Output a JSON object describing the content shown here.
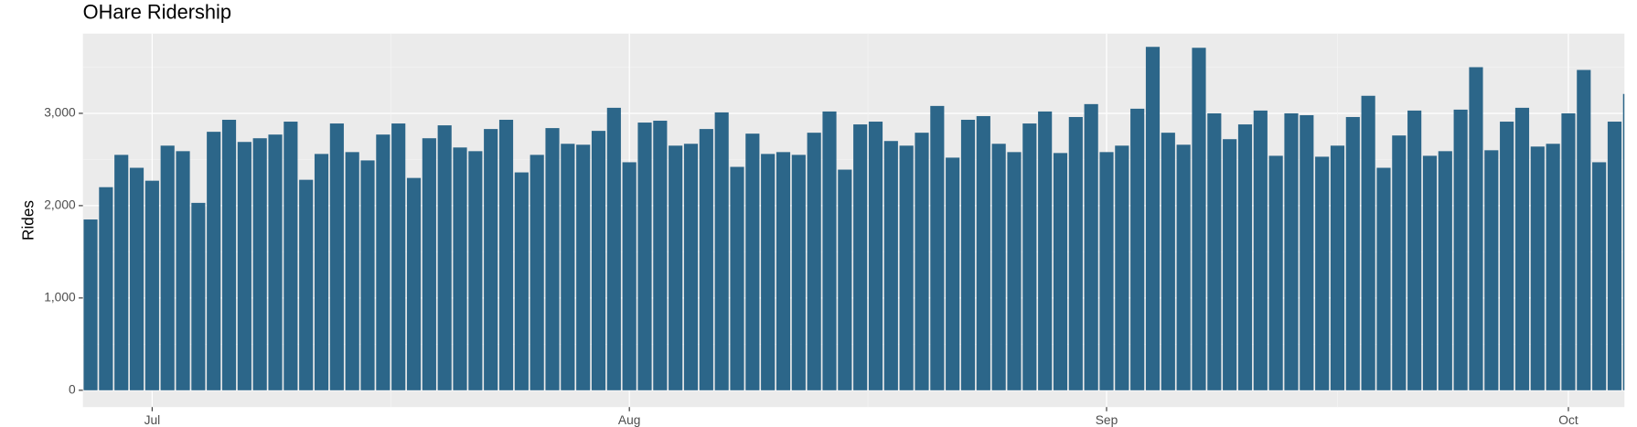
{
  "chart_data": {
    "type": "bar",
    "title": "OHare Ridership",
    "y_label": "Rides",
    "categories": [
      null,
      null,
      null,
      null,
      "Jul",
      null,
      null,
      null,
      null,
      null,
      null,
      null,
      null,
      null,
      null,
      null,
      null,
      null,
      null,
      null,
      null,
      null,
      null,
      null,
      null,
      null,
      null,
      null,
      null,
      null,
      null,
      null,
      null,
      null,
      null,
      "Aug",
      null,
      null,
      null,
      null,
      null,
      null,
      null,
      null,
      null,
      null,
      null,
      null,
      null,
      null,
      null,
      null,
      null,
      null,
      null,
      null,
      null,
      null,
      null,
      null,
      null,
      null,
      null,
      null,
      null,
      null,
      "Sep",
      null,
      null,
      null,
      null,
      null,
      null,
      null,
      null,
      null,
      null,
      null,
      null,
      null,
      null,
      null,
      null,
      null,
      null,
      null,
      null,
      null,
      null,
      null,
      null,
      null,
      null,
      null,
      null,
      null,
      "Oct",
      null,
      null,
      null,
      null
    ],
    "values": [
      1850,
      2200,
      2550,
      2410,
      2270,
      2650,
      2590,
      2030,
      2800,
      2930,
      2690,
      2730,
      2770,
      2910,
      2280,
      2560,
      2890,
      2580,
      2490,
      2770,
      2890,
      2300,
      2730,
      2870,
      2630,
      2590,
      2830,
      2930,
      2360,
      2550,
      2840,
      2670,
      2660,
      2810,
      3060,
      2470,
      2900,
      2920,
      2650,
      2670,
      2830,
      3010,
      2420,
      2780,
      2560,
      2580,
      2550,
      2790,
      3020,
      2390,
      2880,
      2910,
      2700,
      2650,
      2790,
      3080,
      2520,
      2930,
      2970,
      2670,
      2580,
      2890,
      3020,
      2570,
      2960,
      3100,
      2580,
      2650,
      3050,
      3720,
      2790,
      2660,
      3710,
      3000,
      2720,
      2880,
      3030,
      2540,
      3000,
      2980,
      2530,
      2650,
      2960,
      3190,
      2410,
      2760,
      3030,
      2540,
      2590,
      3040,
      3500,
      2600,
      2910,
      3060,
      2640,
      2670,
      3000,
      3470,
      2470,
      2910,
      3210
    ],
    "color": "#2c6689",
    "ylim": [
      -182,
      3864
    ],
    "yticks": [
      0,
      {
        "value": 1000,
        "label": "1,000"
      },
      {
        "value": 2000,
        "label": "2,000"
      },
      {
        "value": 3000,
        "label": "3,000"
      }
    ],
    "grid": true
  }
}
